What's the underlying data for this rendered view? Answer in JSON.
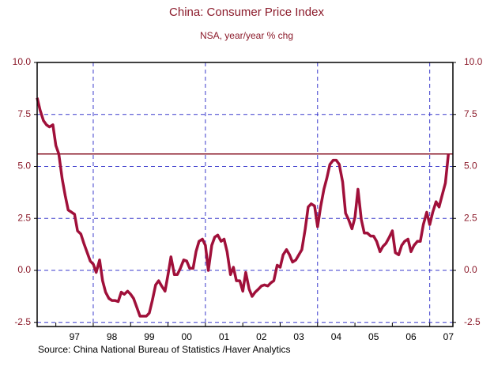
{
  "chart_data": {
    "type": "line",
    "title": "China: Consumer Price Index",
    "subtitle": "NSA, year/year % chg",
    "source": "Source:  China National Bureau of Statistics /Haver Analytics",
    "color": "#a0103a",
    "reference_line": 5.6,
    "x": [
      1996.5,
      1996.58,
      1996.67,
      1996.75,
      1996.83,
      1996.92,
      1997.0,
      1997.08,
      1997.17,
      1997.25,
      1997.33,
      1997.42,
      1997.5,
      1997.58,
      1997.67,
      1997.75,
      1997.83,
      1997.92,
      1998.0,
      1998.08,
      1998.17,
      1998.25,
      1998.33,
      1998.42,
      1998.5,
      1998.58,
      1998.67,
      1998.75,
      1998.83,
      1998.92,
      1999.0,
      1999.08,
      1999.17,
      1999.25,
      1999.33,
      1999.42,
      1999.5,
      1999.58,
      1999.67,
      1999.75,
      1999.83,
      1999.92,
      2000.0,
      2000.08,
      2000.17,
      2000.25,
      2000.33,
      2000.42,
      2000.5,
      2000.58,
      2000.67,
      2000.75,
      2000.83,
      2000.92,
      2001.0,
      2001.08,
      2001.17,
      2001.25,
      2001.33,
      2001.42,
      2001.5,
      2001.58,
      2001.67,
      2001.75,
      2001.83,
      2001.92,
      2002.0,
      2002.08,
      2002.17,
      2002.25,
      2002.33,
      2002.42,
      2002.5,
      2002.58,
      2002.67,
      2002.75,
      2002.83,
      2002.92,
      2003.0,
      2003.08,
      2003.17,
      2003.25,
      2003.33,
      2003.42,
      2003.5,
      2003.58,
      2003.67,
      2003.75,
      2003.83,
      2003.92,
      2004.0,
      2004.08,
      2004.17,
      2004.25,
      2004.33,
      2004.42,
      2004.5,
      2004.58,
      2004.67,
      2004.75,
      2004.83,
      2004.92,
      2005.0,
      2005.08,
      2005.17,
      2005.25,
      2005.33,
      2005.42,
      2005.5,
      2005.58,
      2005.67,
      2005.75,
      2005.83,
      2005.92,
      2006.0,
      2006.08,
      2006.17,
      2006.25,
      2006.33,
      2006.42,
      2006.5,
      2006.58,
      2006.67,
      2006.75,
      2006.83,
      2006.92,
      2007.0,
      2007.08,
      2007.17,
      2007.25,
      2007.33,
      2007.42,
      2007.5
    ],
    "values": [
      8.3,
      7.7,
      7.2,
      7.0,
      6.9,
      7.0,
      6.0,
      5.6,
      4.4,
      3.6,
      2.9,
      2.8,
      2.7,
      1.9,
      1.75,
      1.3,
      0.9,
      0.45,
      0.3,
      -0.1,
      0.5,
      -0.5,
      -1.05,
      -1.35,
      -1.45,
      -1.45,
      -1.5,
      -1.05,
      -1.15,
      -1.0,
      -1.15,
      -1.35,
      -1.8,
      -2.2,
      -2.2,
      -2.2,
      -2.05,
      -1.45,
      -0.7,
      -0.5,
      -0.75,
      -1.0,
      -0.2,
      0.65,
      -0.2,
      -0.2,
      0.1,
      0.5,
      0.45,
      0.1,
      0.1,
      0.9,
      1.4,
      1.5,
      1.2,
      0.0,
      1.2,
      1.6,
      1.7,
      1.4,
      1.5,
      0.9,
      -0.2,
      0.15,
      -0.5,
      -0.5,
      -1.0,
      -0.1,
      -0.9,
      -1.25,
      -1.05,
      -0.9,
      -0.75,
      -0.7,
      -0.75,
      -0.6,
      -0.5,
      0.25,
      0.15,
      0.75,
      1.0,
      0.75,
      0.4,
      0.5,
      0.75,
      1.0,
      2.0,
      3.05,
      3.2,
      3.1,
      2.1,
      3.05,
      3.9,
      4.45,
      5.1,
      5.3,
      5.3,
      5.1,
      4.25,
      2.75,
      2.45,
      2.0,
      2.55,
      3.9,
      2.45,
      1.8,
      1.8,
      1.65,
      1.65,
      1.4,
      0.9,
      1.15,
      1.3,
      1.6,
      1.9,
      0.85,
      0.75,
      1.2,
      1.4,
      1.5,
      0.9,
      1.2,
      1.4,
      1.4,
      2.2,
      2.8,
      2.2,
      2.8,
      3.3,
      3.05,
      3.6,
      4.2,
      5.6
    ],
    "xlim": [
      1996.5,
      2007.62
    ],
    "xticks": [
      {
        "value": 1997.5,
        "label": "97"
      },
      {
        "value": 1998.5,
        "label": "98"
      },
      {
        "value": 1999.5,
        "label": "99"
      },
      {
        "value": 2000.5,
        "label": "00"
      },
      {
        "value": 2001.5,
        "label": "01"
      },
      {
        "value": 2002.5,
        "label": "02"
      },
      {
        "value": 2003.5,
        "label": "03"
      },
      {
        "value": 2004.5,
        "label": "04"
      },
      {
        "value": 2005.5,
        "label": "05"
      },
      {
        "value": 2006.5,
        "label": "06"
      },
      {
        "value": 2007.5,
        "label": "07"
      }
    ],
    "xgrid": [
      1998,
      2001,
      2004,
      2007
    ],
    "ylim": [
      -2.7,
      10
    ],
    "yticks": [
      {
        "value": 10,
        "label": "10.0"
      },
      7.5,
      {
        "value": 5,
        "label": "5.0"
      },
      2.5,
      {
        "value": 0,
        "label": "0.0"
      },
      -2.5
    ],
    "grid": true
  }
}
